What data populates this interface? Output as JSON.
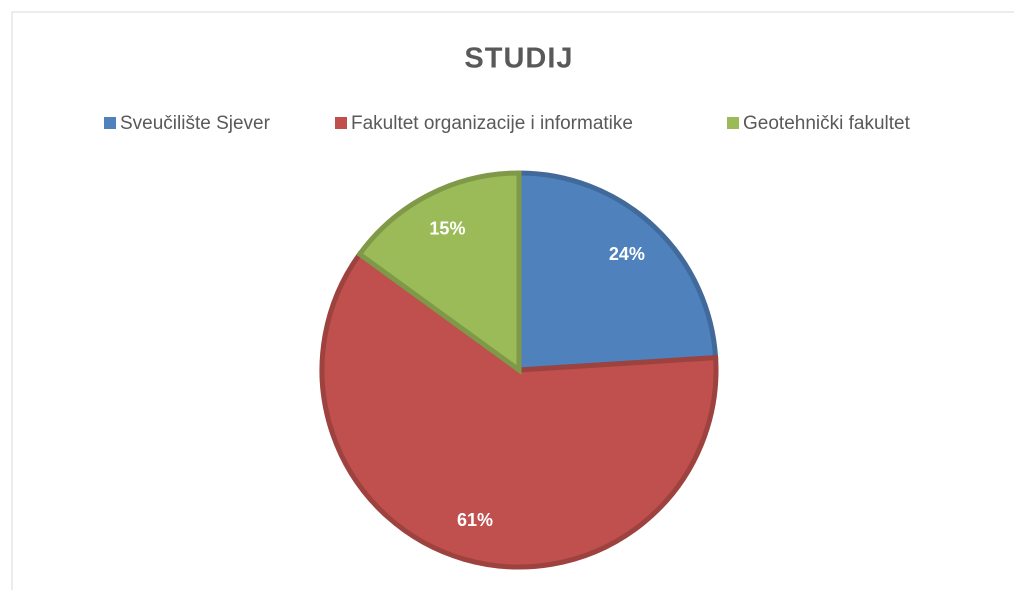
{
  "chart_data": {
    "type": "pie",
    "title": "STUDIJ",
    "categories": [
      "Sveučilište Sjever",
      "Fakultet organizacije i informatike",
      "Geotehnički fakultet"
    ],
    "values": [
      24,
      61,
      15
    ],
    "value_labels": [
      "24%",
      "61%",
      "15%"
    ],
    "colors": [
      "#4f81bd",
      "#c0504d",
      "#9bbb59"
    ],
    "legend": "top"
  }
}
